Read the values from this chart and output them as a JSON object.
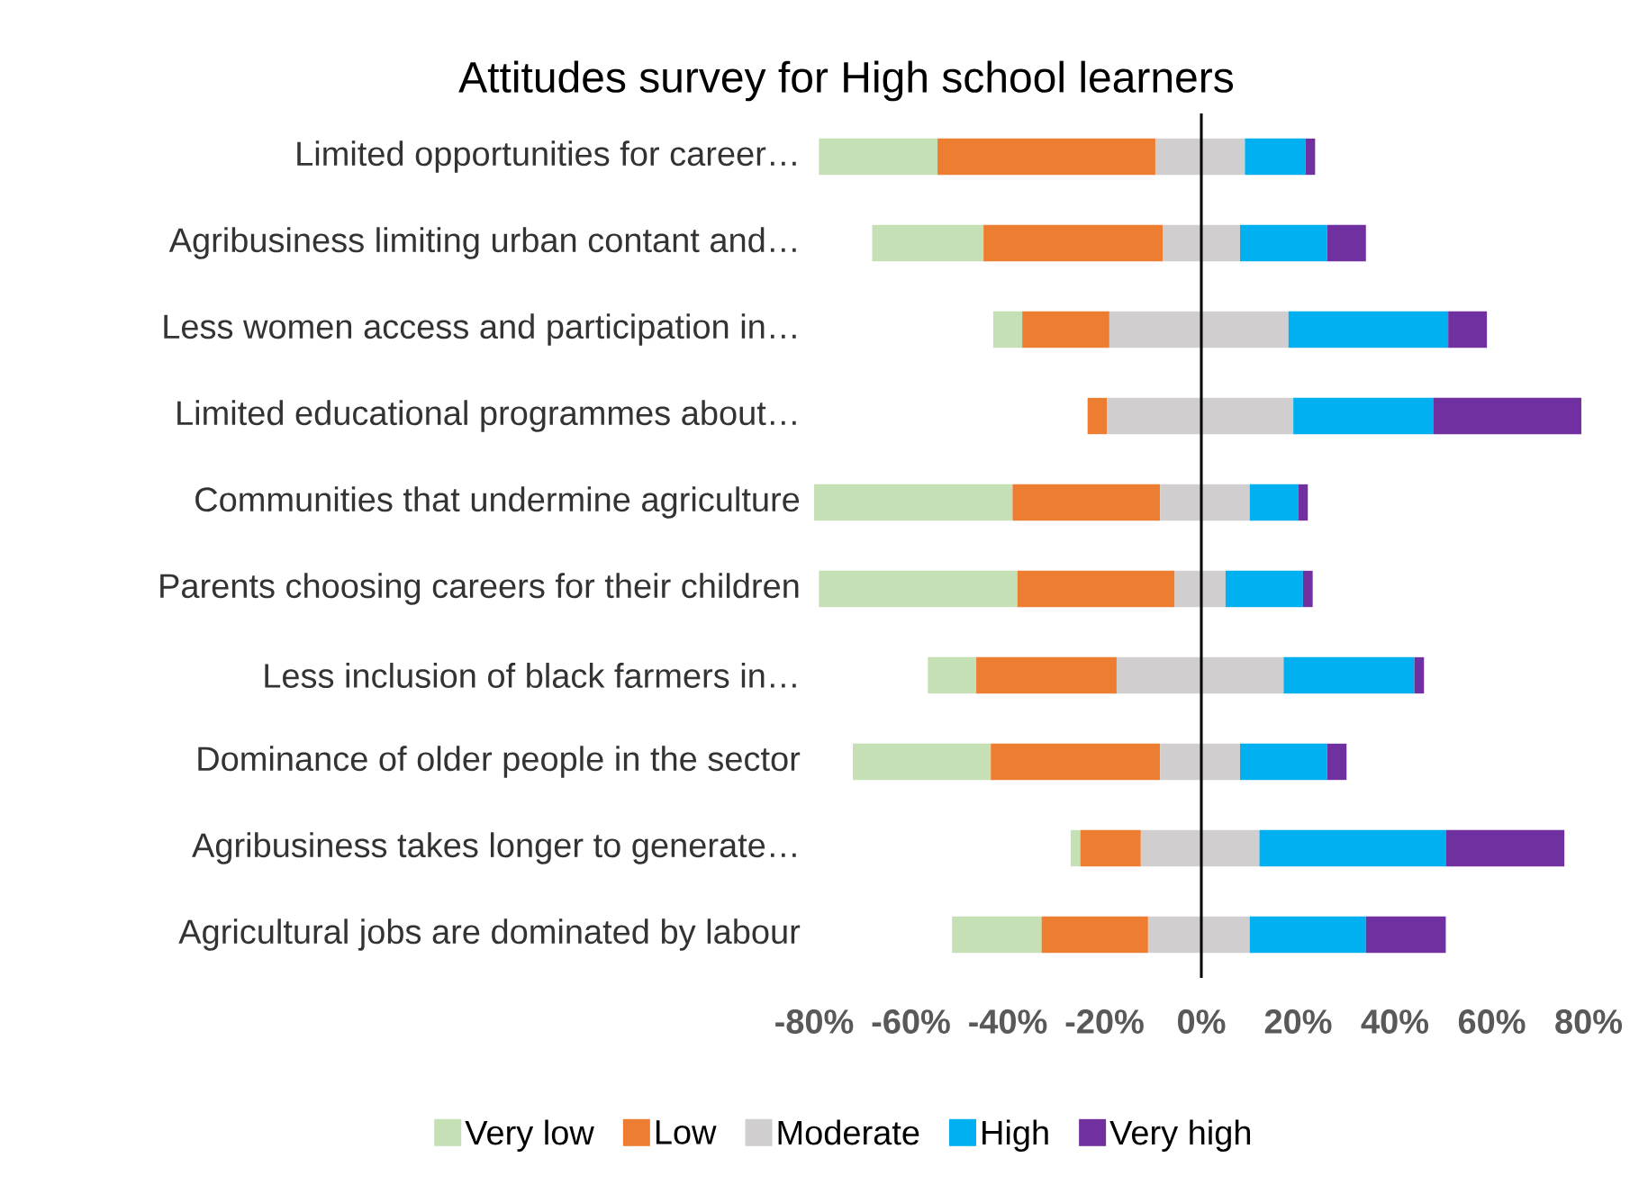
{
  "chart_data": {
    "type": "bar",
    "orientation": "horizontal",
    "title": "Attitudes survey for High school learners",
    "categories": [
      "Limited opportunities for career…",
      "Agribusiness limiting urban contant and…",
      "Less women access and participation in…",
      "Limited educational programmes about…",
      "Communities that undermine agriculture",
      "Parents choosing careers for their children",
      "Less inclusion of black farmers in…",
      "Dominance of older people in the sector",
      "Agribusiness takes longer to generate…",
      "Agricultural jobs are dominated by labour"
    ],
    "series": [
      {
        "name": "Very low",
        "color": "#c5e0b4",
        "base": [
          -79,
          -68,
          -43,
          null,
          -80,
          -79,
          -56.5,
          -72,
          -27,
          -51.5
        ],
        "values": [
          24.5,
          23,
          6,
          null,
          41,
          41,
          10,
          28.5,
          2,
          18.5
        ]
      },
      {
        "name": "Low",
        "color": "#ed7d31",
        "base": [
          -54.5,
          -45,
          -37,
          -23.5,
          -39,
          -38,
          -46.5,
          -43.5,
          -25,
          -33
        ],
        "values": [
          45,
          37,
          18,
          4,
          30.5,
          32.5,
          29,
          35,
          12.5,
          22
        ]
      },
      {
        "name": "Moderate",
        "color": "#d0cece",
        "base": [
          -9.5,
          -8,
          -19,
          -19.5,
          -8.5,
          -5.5,
          -17.5,
          -8.5,
          -12.5,
          -11
        ],
        "values": [
          18.5,
          16,
          37,
          38.5,
          18.5,
          10.5,
          34.5,
          16.5,
          24.5,
          21
        ]
      },
      {
        "name": "High",
        "color": "#00b0f0",
        "base": [
          9,
          8,
          18,
          19,
          10,
          5,
          17,
          8,
          12,
          10
        ],
        "values": [
          12.5,
          18,
          33,
          29,
          10,
          16,
          27,
          18,
          38.5,
          24
        ]
      },
      {
        "name": "Very high",
        "color": "#7030a0",
        "base": [
          21.5,
          26,
          51,
          48,
          20,
          21,
          44,
          26,
          50.5,
          34
        ],
        "values": [
          2,
          8,
          8,
          30.5,
          2,
          2,
          2,
          4,
          24.5,
          16.5
        ]
      }
    ],
    "xlim": [
      -80,
      80
    ],
    "xticks": [
      {
        "value": -80,
        "label": "-80%"
      },
      {
        "value": -60,
        "label": "-60%"
      },
      {
        "value": -40,
        "label": "-40%"
      },
      {
        "value": -20,
        "label": "-20%"
      },
      {
        "value": 0,
        "label": "0%"
      },
      {
        "value": 20,
        "label": "20%"
      },
      {
        "value": 40,
        "label": "40%"
      },
      {
        "value": 60,
        "label": "60%"
      },
      {
        "value": 80,
        "label": "80%"
      }
    ],
    "legend": "bottom"
  }
}
